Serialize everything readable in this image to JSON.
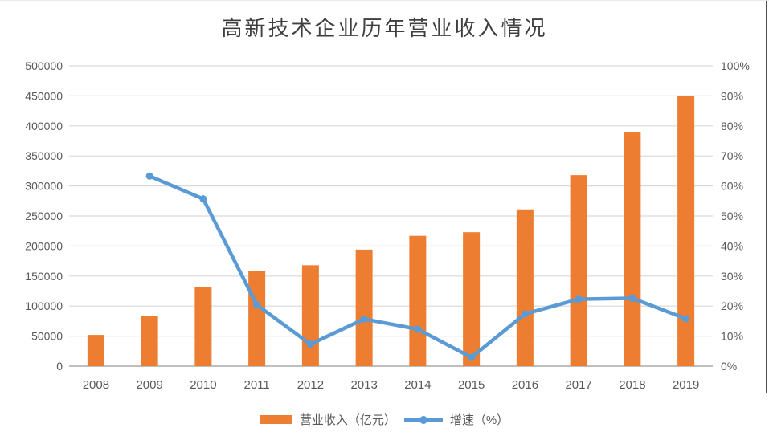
{
  "chart_data": {
    "type": "combo-bar-line",
    "title": "高新技术企业历年营业收入情况",
    "categories": [
      "2008",
      "2009",
      "2010",
      "2011",
      "2012",
      "2013",
      "2014",
      "2015",
      "2016",
      "2017",
      "2018",
      "2019"
    ],
    "series": [
      {
        "name": "营业收入（亿元）",
        "type": "bar",
        "axis": "left",
        "color": "#ED7D31",
        "values": [
          52000,
          84000,
          131000,
          158000,
          168000,
          194000,
          217000,
          223000,
          261000,
          318000,
          390000,
          450000
        ]
      },
      {
        "name": "增速（%）",
        "type": "line",
        "axis": "right",
        "color": "#5B9BD5",
        "values": [
          null,
          63.3,
          55.7,
          20.4,
          7.3,
          15.7,
          12.3,
          2.9,
          17.4,
          22.3,
          22.6,
          15.8
        ]
      }
    ],
    "left_axis": {
      "min": 0,
      "max": 500000,
      "step": 50000,
      "tick_labels": [
        "500000",
        "450000",
        "400000",
        "350000",
        "300000",
        "250000",
        "200000",
        "150000",
        "100000",
        "50000",
        "0"
      ]
    },
    "right_axis": {
      "min": 0,
      "max": 100,
      "step": 10,
      "tick_labels": [
        "100%",
        "90%",
        "80%",
        "70%",
        "60%",
        "50%",
        "40%",
        "30%",
        "20%",
        "10%",
        "0%"
      ]
    },
    "grid": true,
    "legend_position": "bottom",
    "colors": {
      "grid_line": "#D9D9D9",
      "axis_line": "#BFBFBF",
      "tick_text": "#595959",
      "title_text": "#3F3F3F",
      "figure_border": "#4D4D4D"
    }
  }
}
